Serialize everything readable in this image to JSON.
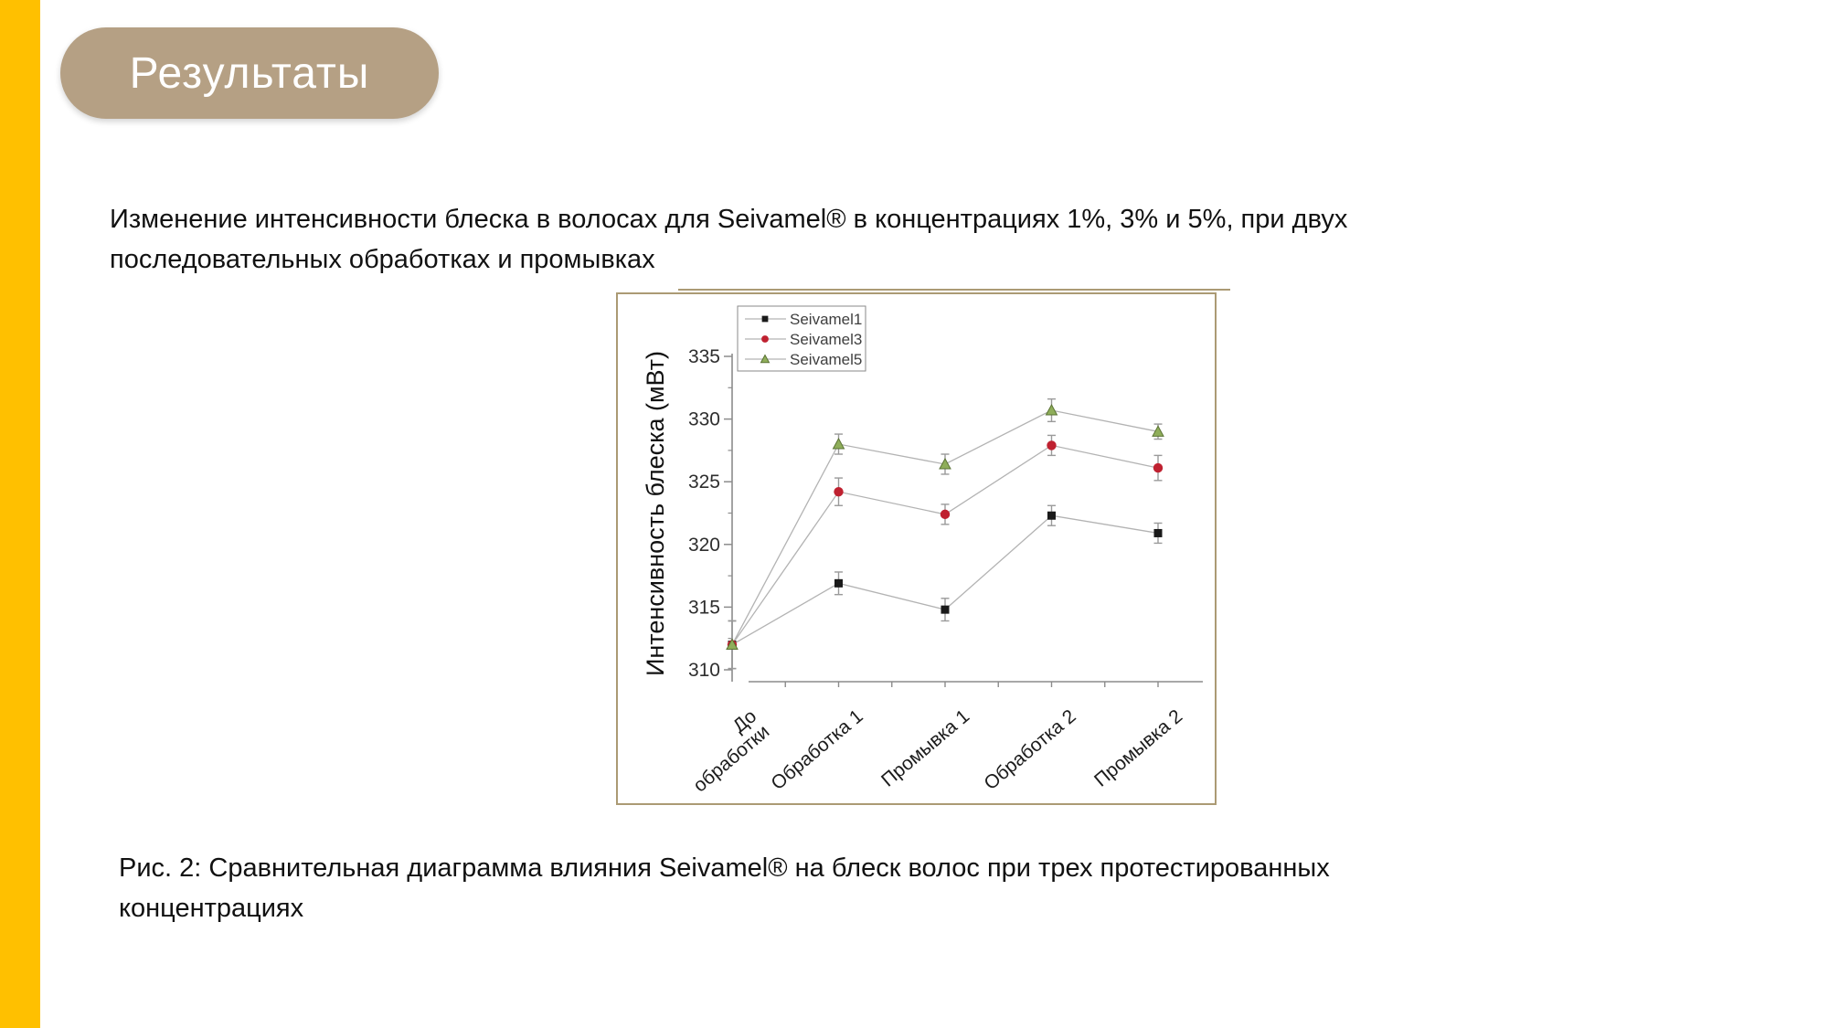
{
  "slide": {
    "title": "Результаты",
    "body_text": "Изменение интенсивности блеска в волосах для Seivamel®  в концентрациях 1%, 3% и 5%, при двух последовательных обработках и промывках",
    "caption": "Рис. 2: Сравнительная диаграмма влияния Seivamel® на блеск волос при трех протестированных концентрациях",
    "colors": {
      "accent_bar": "#FFC000",
      "title_pill": "#B5A084",
      "chart_border": "#AB9A74"
    }
  },
  "chart_data": {
    "type": "line",
    "title": "",
    "xlabel": "",
    "ylabel": "Интенсивность блеска (мВт)",
    "ylim": [
      310,
      335
    ],
    "yticks": [
      310,
      315,
      320,
      325,
      330,
      335
    ],
    "ytick_minor_step": 2.5,
    "grid": false,
    "legend_position": "top-left",
    "line_color": "#b3b3b3",
    "error_bar_color": "#9a9a9a",
    "categories": [
      "До\nобработки",
      "Обработка 1",
      "Промывка 1",
      "Обработка 2",
      "Промывка 2"
    ],
    "series": [
      {
        "name": "Seivamel1",
        "marker": "square",
        "color": "#1a1a1a",
        "values": [
          312,
          316.9,
          314.8,
          322.3,
          320.9
        ],
        "errors": [
          1.9,
          0.9,
          0.9,
          0.8,
          0.8
        ]
      },
      {
        "name": "Seivamel3",
        "marker": "circle",
        "color": "#bf2130",
        "values": [
          312,
          324.2,
          322.4,
          327.9,
          326.1
        ],
        "errors": [
          1.9,
          1.1,
          0.8,
          0.8,
          1.0
        ]
      },
      {
        "name": "Seivamel5",
        "marker": "triangle",
        "color": "#8fae5a",
        "marker_edge": "#5a7234",
        "values": [
          312,
          328.0,
          326.4,
          330.7,
          329.0
        ],
        "errors": [
          1.9,
          0.8,
          0.8,
          0.9,
          0.6
        ]
      }
    ]
  }
}
